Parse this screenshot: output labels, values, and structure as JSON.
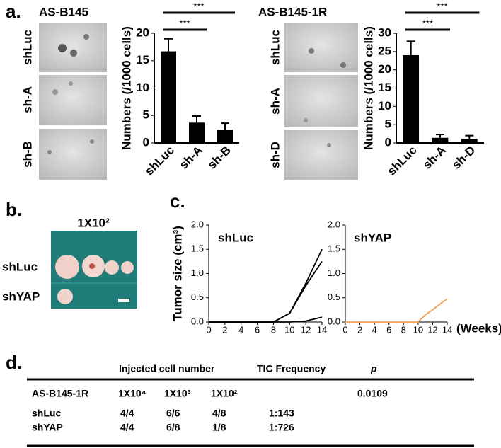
{
  "panels": {
    "a": "a.",
    "b": "b.",
    "c": "c.",
    "d": "d."
  },
  "images": {
    "a_left": {
      "rows": [
        "shLuc",
        "sh-A",
        "sh-B"
      ]
    },
    "a_right": {
      "rows": [
        "shLuc",
        "sh-A",
        "sh-D"
      ]
    },
    "b": {
      "dose": "1X10²",
      "rows": [
        "shLuc",
        "shYAP"
      ]
    }
  },
  "chart_data": [
    {
      "type": "bar",
      "title": "AS-B145",
      "ylabel": "Numbers (/1000 cells)",
      "categories": [
        "shLuc",
        "sh-A",
        "sh-B"
      ],
      "values": [
        16.7,
        3.7,
        2.4
      ],
      "errors": [
        2.3,
        1.2,
        1.2
      ],
      "color": "#000000",
      "ylim": [
        0,
        20
      ],
      "yticks": [
        0,
        5,
        10,
        15,
        20
      ],
      "annotations": [
        "***",
        "***"
      ]
    },
    {
      "type": "bar",
      "title": "AS-B145-1R",
      "ylabel": "Numbers (/1000 cells)",
      "categories": [
        "shLuc",
        "sh-A",
        "sh-D"
      ],
      "values": [
        24,
        1.4,
        1.1
      ],
      "errors": [
        3.8,
        0.9,
        0.9
      ],
      "color": "#000000",
      "ylim": [
        0,
        30
      ],
      "yticks": [
        0,
        5,
        10,
        15,
        20,
        25,
        30
      ],
      "annotations": [
        "***",
        "***"
      ]
    },
    {
      "type": "line",
      "title": "shLuc",
      "ylabel": "Tumor size (cm³)",
      "x": [
        0,
        2,
        4,
        6,
        8,
        10,
        12,
        14
      ],
      "series": [
        {
          "color": "#000000",
          "values": [
            0,
            0,
            0,
            0,
            0,
            0.18,
            0.8,
            1.5
          ]
        },
        {
          "color": "#000000",
          "values": [
            0,
            0,
            0,
            0,
            0,
            0.18,
            0.75,
            1.25
          ]
        },
        {
          "color": "#000000",
          "values": [
            0,
            0,
            0,
            0,
            0,
            0,
            0.02,
            0.1
          ]
        }
      ],
      "xlim": [
        0,
        14
      ],
      "xticks": [
        0,
        2,
        4,
        6,
        8,
        10,
        12,
        14
      ],
      "ylim": [
        0,
        2
      ],
      "yticks": [
        {
          "value": 0,
          "label": "0.0"
        },
        0.5,
        {
          "value": 1,
          "label": "1.0"
        },
        1.5,
        {
          "value": 2,
          "label": "2.0"
        }
      ]
    },
    {
      "type": "line",
      "title": "shYAP",
      "xlabel": "(Weeks)",
      "x": [
        0,
        2,
        4,
        6,
        8,
        10,
        11,
        12,
        13,
        14
      ],
      "series": [
        {
          "color": "#f0a050",
          "values": [
            0,
            0,
            0,
            0,
            0,
            0,
            0.15,
            0.25,
            0.37,
            0.48
          ]
        }
      ],
      "xlim": [
        0,
        14
      ],
      "xticks": [
        0,
        2,
        4,
        6,
        8,
        10,
        12,
        14
      ],
      "ylim": [
        0,
        2
      ],
      "yticks": [
        {
          "value": 0,
          "label": "0.0"
        },
        0.5,
        {
          "value": 1,
          "label": "1.0"
        },
        1.5,
        {
          "value": 2,
          "label": "2.0"
        }
      ]
    }
  ],
  "table": {
    "header": [
      "Injected cell number",
      "TIC Frequency",
      "p"
    ],
    "subheader": {
      "label": "AS-B145-1R",
      "doses": [
        "1X10⁴",
        "1X10³",
        "1X10²"
      ],
      "p": "0.0109"
    },
    "rows": [
      [
        "shLuc",
        "4/4",
        "6/6",
        "4/8",
        "1:143"
      ],
      [
        "shYAP",
        "4/4",
        "6/8",
        "1/8",
        "1:726"
      ]
    ]
  }
}
